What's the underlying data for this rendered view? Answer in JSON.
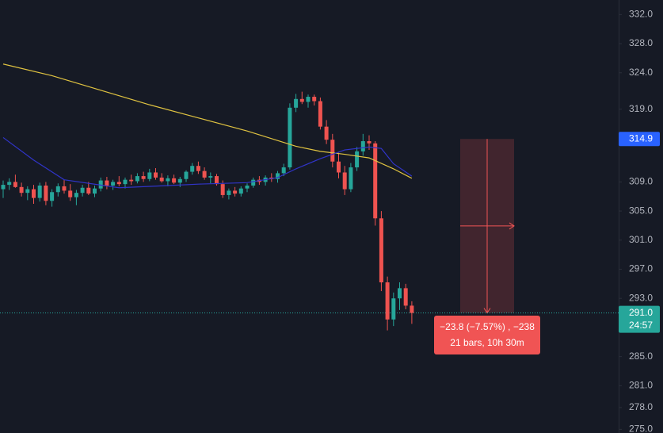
{
  "chart_data": {
    "type": "candlestick",
    "up_color": "#26a69a",
    "down_color": "#ef5350",
    "ohlc": [
      [
        308.0,
        309.2,
        306.8,
        308.6
      ],
      [
        308.6,
        309.5,
        307.9,
        309.0
      ],
      [
        309.0,
        310.0,
        308.2,
        308.3
      ],
      [
        308.3,
        308.9,
        307.0,
        307.5
      ],
      [
        307.5,
        308.4,
        306.5,
        308.0
      ],
      [
        308.0,
        308.6,
        306.0,
        306.8
      ],
      [
        306.8,
        308.9,
        306.3,
        308.5
      ],
      [
        308.5,
        309.0,
        305.8,
        306.4
      ],
      [
        306.4,
        308.0,
        305.6,
        307.6
      ],
      [
        307.6,
        308.8,
        307.0,
        308.4
      ],
      [
        308.4,
        309.3,
        307.4,
        307.8
      ],
      [
        307.8,
        308.7,
        306.4,
        306.9
      ],
      [
        306.9,
        307.9,
        305.8,
        307.5
      ],
      [
        307.5,
        308.6,
        307.0,
        308.2
      ],
      [
        308.2,
        309.0,
        307.2,
        307.4
      ],
      [
        307.4,
        308.5,
        306.9,
        308.1
      ],
      [
        308.1,
        309.6,
        307.7,
        309.2
      ],
      [
        309.2,
        309.7,
        308.0,
        308.5
      ],
      [
        308.5,
        309.3,
        307.9,
        309.0
      ],
      [
        309.0,
        309.8,
        308.4,
        308.7
      ],
      [
        308.7,
        309.6,
        308.1,
        309.3
      ],
      [
        309.3,
        310.0,
        308.6,
        309.1
      ],
      [
        309.1,
        310.2,
        308.8,
        309.8
      ],
      [
        309.8,
        310.4,
        309.0,
        309.4
      ],
      [
        309.4,
        310.8,
        309.1,
        310.3
      ],
      [
        310.3,
        310.9,
        309.3,
        309.6
      ],
      [
        309.6,
        310.2,
        308.9,
        309.1
      ],
      [
        309.1,
        309.9,
        308.4,
        309.5
      ],
      [
        309.5,
        310.0,
        308.7,
        308.9
      ],
      [
        308.9,
        309.7,
        308.3,
        309.4
      ],
      [
        309.4,
        310.6,
        309.0,
        310.4
      ],
      [
        310.4,
        311.6,
        310.0,
        311.2
      ],
      [
        311.2,
        311.8,
        310.1,
        310.5
      ],
      [
        310.5,
        311.0,
        309.3,
        309.6
      ],
      [
        309.6,
        310.3,
        308.8,
        309.8
      ],
      [
        309.8,
        310.1,
        308.5,
        308.7
      ],
      [
        308.7,
        309.2,
        306.8,
        307.2
      ],
      [
        307.2,
        308.1,
        306.6,
        307.8
      ],
      [
        307.8,
        308.3,
        307.0,
        307.4
      ],
      [
        307.4,
        308.4,
        307.0,
        308.1
      ],
      [
        308.1,
        308.8,
        307.6,
        308.5
      ],
      [
        308.5,
        309.6,
        308.2,
        309.3
      ],
      [
        309.3,
        309.8,
        308.6,
        309.0
      ],
      [
        309.0,
        309.9,
        308.5,
        309.6
      ],
      [
        309.6,
        310.2,
        309.0,
        309.4
      ],
      [
        309.4,
        310.5,
        308.9,
        310.2
      ],
      [
        310.2,
        311.5,
        309.8,
        311.0
      ],
      [
        311.0,
        319.8,
        310.7,
        319.2
      ],
      [
        319.2,
        321.1,
        318.6,
        320.4
      ],
      [
        320.4,
        321.4,
        319.7,
        320.0
      ],
      [
        320.0,
        321.0,
        319.2,
        320.7
      ],
      [
        320.7,
        321.0,
        319.5,
        320.1
      ],
      [
        320.1,
        320.6,
        316.2,
        316.6
      ],
      [
        316.6,
        317.5,
        314.2,
        314.8
      ],
      [
        314.8,
        315.6,
        311.0,
        311.8
      ],
      [
        311.8,
        313.0,
        309.5,
        310.3
      ],
      [
        310.3,
        311.2,
        307.2,
        308.0
      ],
      [
        308.0,
        311.6,
        307.6,
        311.0
      ],
      [
        311.0,
        313.8,
        310.5,
        313.2
      ],
      [
        313.2,
        315.6,
        312.6,
        314.6
      ],
      [
        314.6,
        315.4,
        313.4,
        314.3
      ],
      [
        314.3,
        314.6,
        303.0,
        304.0
      ],
      [
        304.0,
        305.0,
        294.0,
        295.2
      ],
      [
        295.2,
        296.0,
        288.6,
        290.1
      ],
      [
        290.1,
        293.8,
        289.2,
        293.0
      ],
      [
        293.0,
        295.2,
        291.4,
        294.4
      ],
      [
        294.4,
        295.0,
        291.5,
        292.0
      ],
      [
        292.0,
        292.6,
        289.5,
        291.0
      ]
    ],
    "moving_averages": [
      {
        "color": "#e0c341",
        "x": [
          0,
          8,
          16,
          24,
          32,
          40,
          48,
          52,
          56,
          60,
          64,
          67
        ],
        "values": [
          325.2,
          323.6,
          321.6,
          319.6,
          317.8,
          316.0,
          313.9,
          313.2,
          312.8,
          312.3,
          310.8,
          309.5
        ]
      },
      {
        "color": "#3034c8",
        "x": [
          0,
          5,
          10,
          19,
          27,
          32,
          40,
          45,
          48,
          52,
          56,
          60,
          62,
          64,
          67
        ],
        "values": [
          315.1,
          312.0,
          309.3,
          308.2,
          308.5,
          308.7,
          308.9,
          309.6,
          310.8,
          312.2,
          313.4,
          313.8,
          313.6,
          311.5,
          309.8
        ]
      }
    ],
    "ylim": [
      274.5,
      334
    ],
    "yticks": [
      {
        "value": 332,
        "label": "332.0"
      },
      {
        "value": 328,
        "label": "328.0"
      },
      {
        "value": 324,
        "label": "324.0"
      },
      {
        "value": 319,
        "label": "319.0"
      },
      {
        "value": 309,
        "label": "309.0"
      },
      {
        "value": 305,
        "label": "305.0"
      },
      {
        "value": 301,
        "label": "301.0"
      },
      {
        "value": 297,
        "label": "297.0"
      },
      {
        "value": 293,
        "label": "293.0"
      },
      {
        "value": 285,
        "label": "285.0"
      },
      {
        "value": 281,
        "label": "281.0"
      },
      {
        "value": 278,
        "label": "278.0"
      },
      {
        "value": 275,
        "label": "275.0"
      }
    ],
    "grid": false,
    "marker_tag": {
      "value": 314.9,
      "label": "314.9",
      "color": "#2962ff"
    },
    "current_price": {
      "value": 291.0,
      "label": "291.0",
      "countdown": "24:57",
      "color": "#26a69a"
    },
    "measure": {
      "from": 314.9,
      "to": 291.0,
      "color": "#f05454",
      "lines": [
        "−23.8 (−7.57%) , −238",
        "21 bars, 10h 30m"
      ]
    }
  }
}
